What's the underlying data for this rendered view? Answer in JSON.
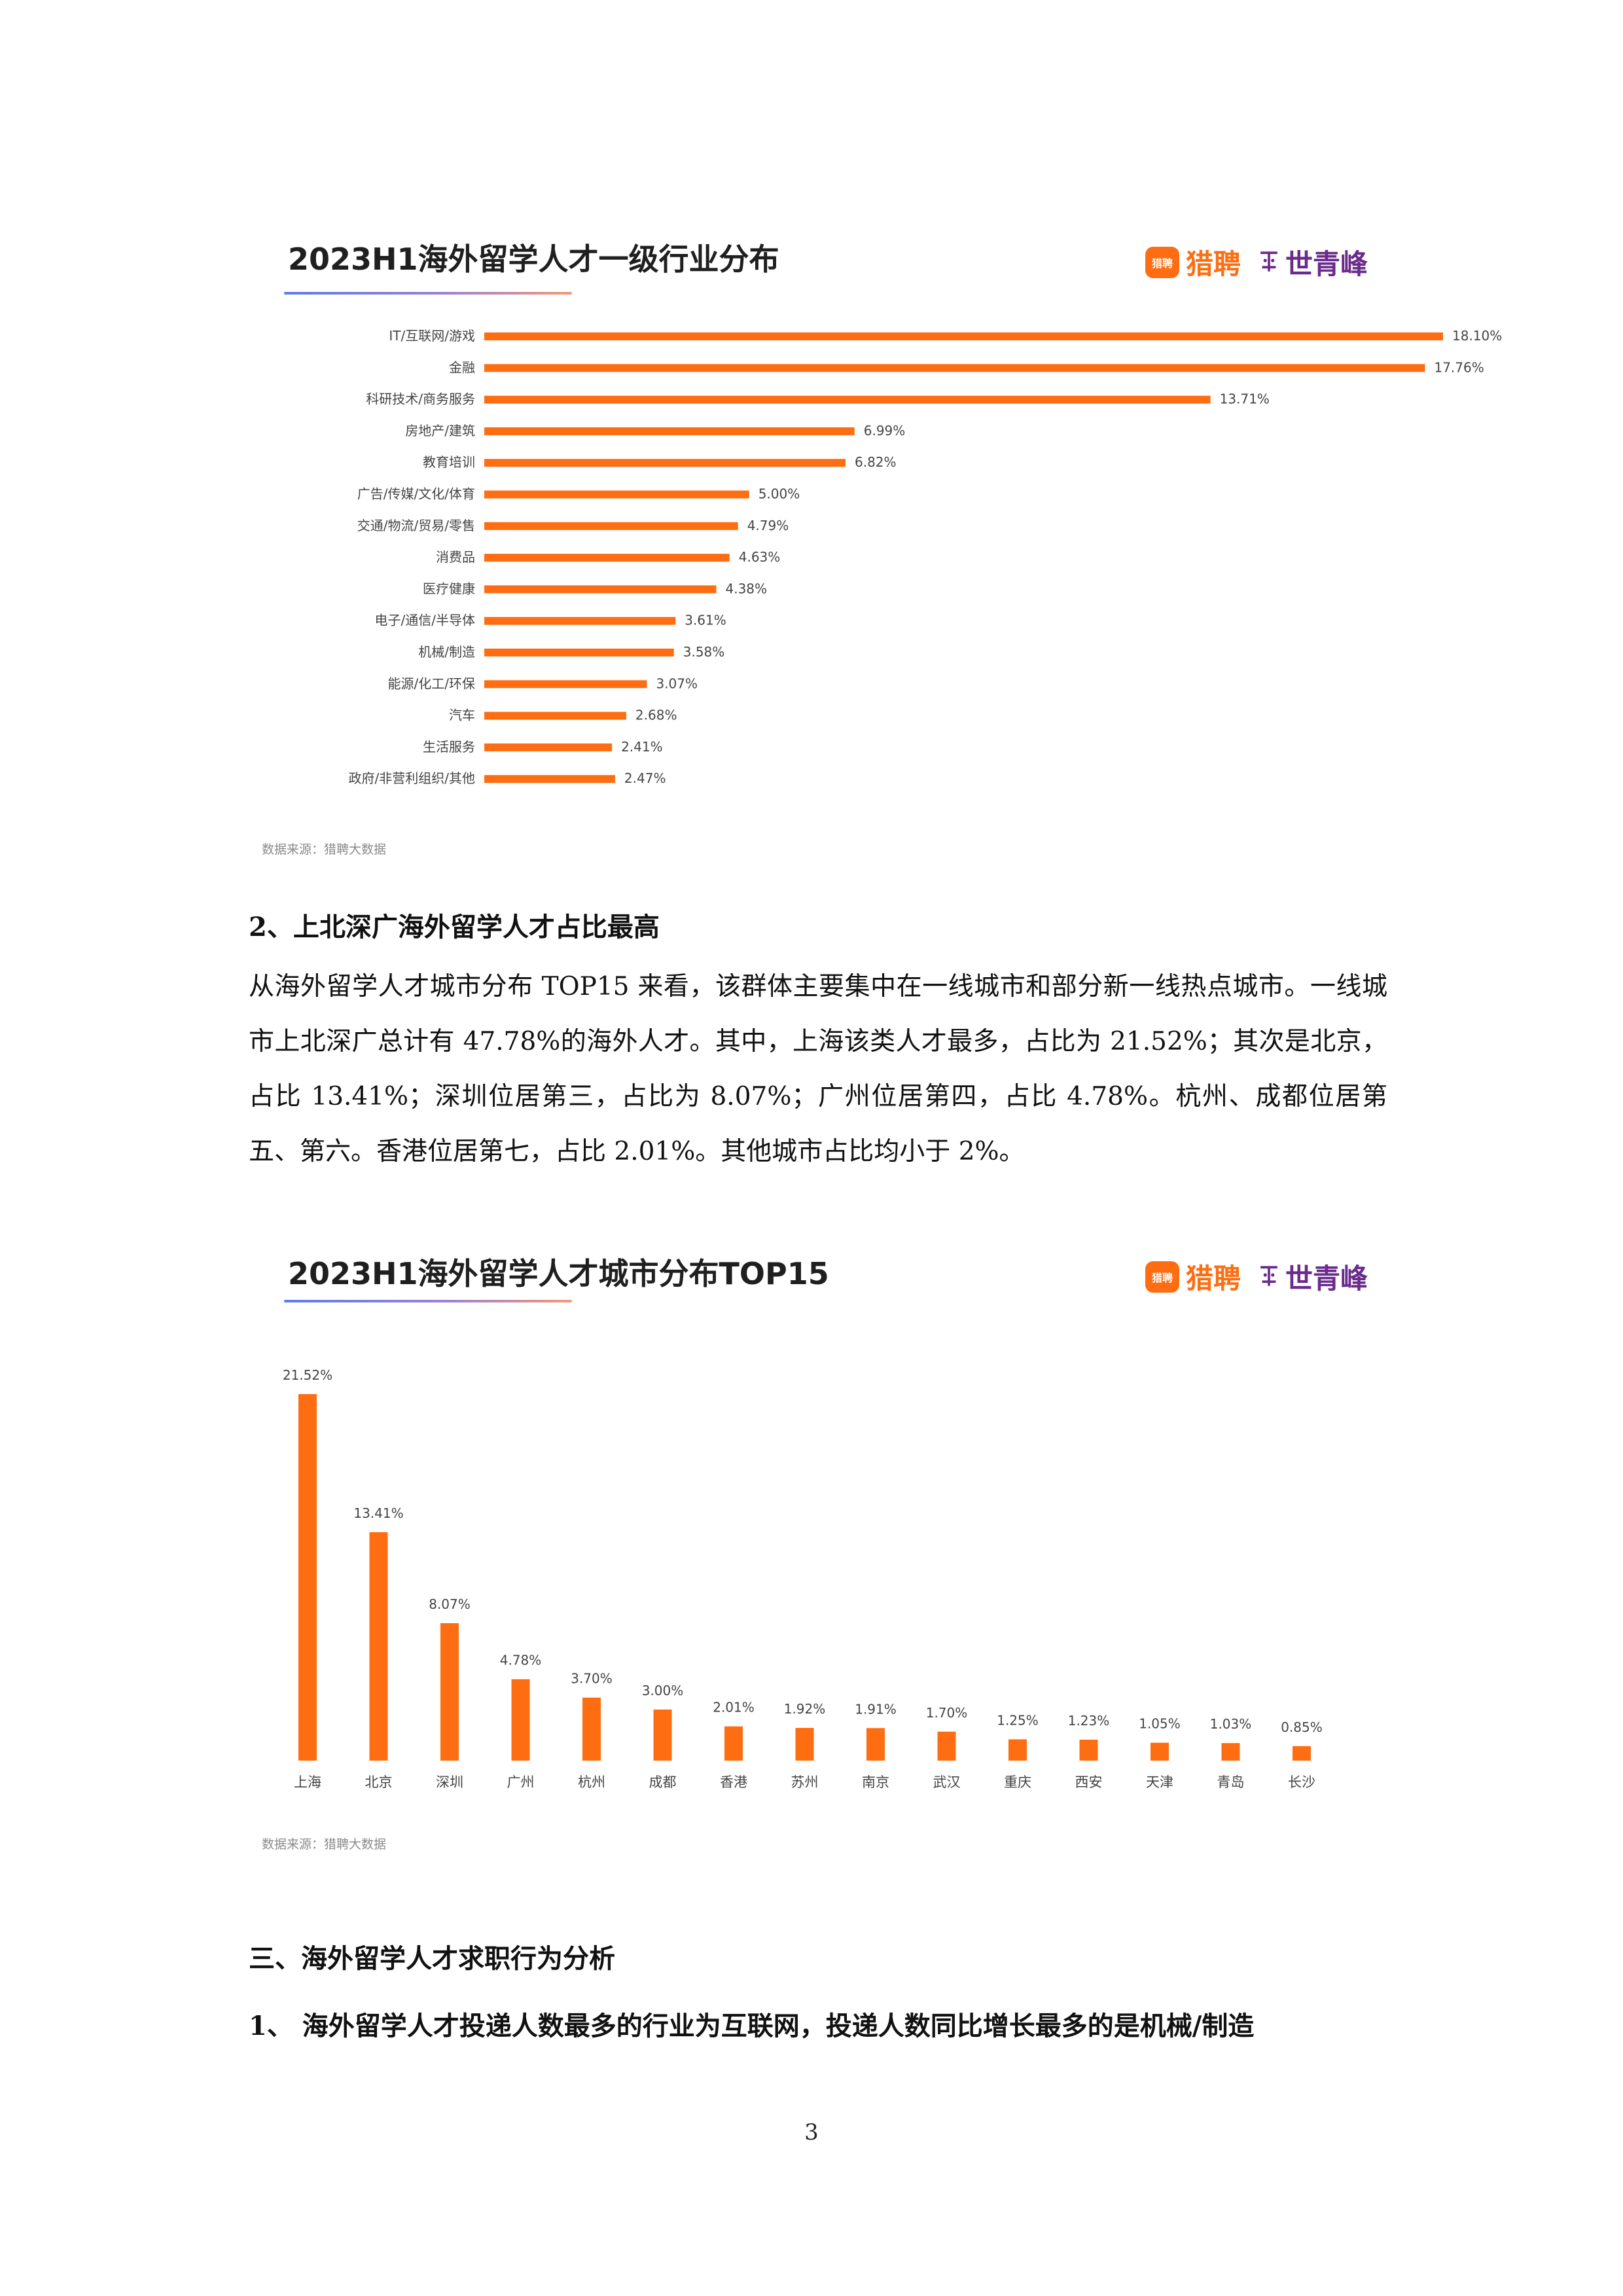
{
  "chart_data": [
    {
      "type": "bar",
      "orientation": "horizontal",
      "title": "2023H1海外留学人才一级行业分布",
      "source": "数据来源：猎聘大数据",
      "categories": [
        "IT/互联网/游戏",
        "金融",
        "科研技术/商务服务",
        "房地产/建筑",
        "教育培训",
        "广告/传媒/文化/体育",
        "交通/物流/贸易/零售",
        "消费品",
        "医疗健康",
        "电子/通信/半导体",
        "机械/制造",
        "能源/化工/环保",
        "汽车",
        "生活服务",
        "政府/非营利组织/其他"
      ],
      "values": [
        18.1,
        17.76,
        13.71,
        6.99,
        6.82,
        5.0,
        4.79,
        4.63,
        4.38,
        3.61,
        3.58,
        3.07,
        2.68,
        2.41,
        2.47
      ],
      "value_labels": [
        "18.10%",
        "17.76%",
        "13.71%",
        "6.99%",
        "6.82%",
        "5.00%",
        "4.79%",
        "4.63%",
        "4.38%",
        "3.61%",
        "3.58%",
        "3.07%",
        "2.68%",
        "2.41%",
        "2.47%"
      ],
      "color": "#ff6d12",
      "xlim": [
        0,
        20
      ],
      "grid": false,
      "legend": false
    },
    {
      "type": "bar",
      "orientation": "vertical",
      "title": "2023H1海外留学人才城市分布TOP15",
      "source": "数据来源：猎聘大数据",
      "categories": [
        "上海",
        "北京",
        "深圳",
        "广州",
        "杭州",
        "成都",
        "香港",
        "苏州",
        "南京",
        "武汉",
        "重庆",
        "西安",
        "天津",
        "青岛",
        "长沙"
      ],
      "values": [
        21.52,
        13.41,
        8.07,
        4.78,
        3.7,
        3.0,
        2.01,
        1.92,
        1.91,
        1.7,
        1.25,
        1.23,
        1.05,
        1.03,
        0.85
      ],
      "value_labels": [
        "21.52%",
        "13.41%",
        "8.07%",
        "4.78%",
        "3.70%",
        "3.00%",
        "2.01%",
        "1.92%",
        "1.91%",
        "1.70%",
        "1.25%",
        "1.23%",
        "1.05%",
        "1.03%",
        "0.85%"
      ],
      "color": "#ff6d12",
      "ylim": [
        0,
        21.52
      ],
      "grid": false,
      "legend": false
    }
  ],
  "brand": {
    "bubble_text": "猎聘",
    "liepin": "猎聘",
    "mark": "𝄞",
    "shiqingfeng": "世青峰",
    "liepin_color": "#ff6d12",
    "sqf_color": "#6a2b8c"
  },
  "section2": {
    "heading": "2、上北深广海外留学人才占比最高",
    "paragraph": "从海外留学人才城市分布 TOP15 来看，该群体主要集中在一线城市和部分新一线热点城市。一线城市上北深广总计有 47.78%的海外人才。其中，上海该类人才最多，占比为 21.52%；其次是北京，占比 13.41%；深圳位居第三，占比为 8.07%；广州位居第四，占比 4.78%。杭州、成都位居第五、第六。香港位居第七，占比 2.01%。其他城市占比均小于 2%。"
  },
  "section3": {
    "heading": "三、海外留学人才求职行为分析",
    "subheading": "1、 海外留学人才投递人数最多的行业为互联网，投递人数同比增长最多的是机械/制造"
  },
  "page_number": "3"
}
